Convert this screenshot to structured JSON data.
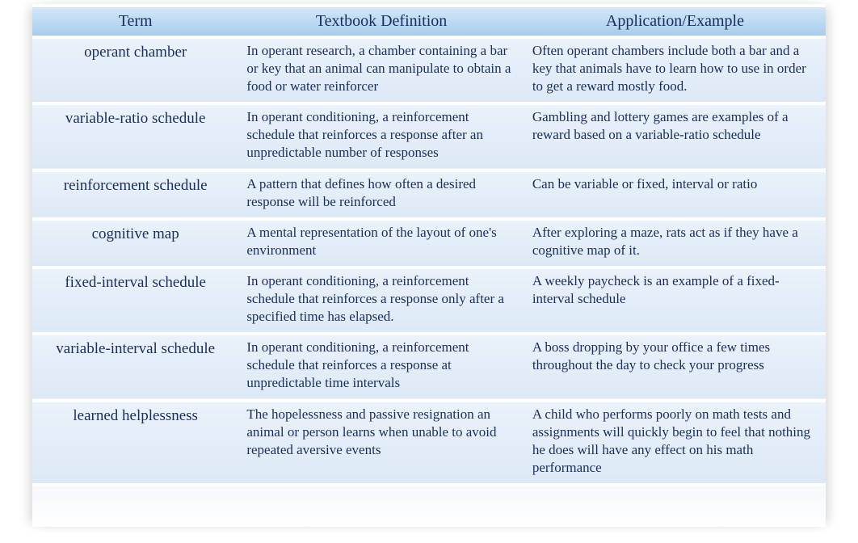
{
  "headers": {
    "term": "Term",
    "definition": "Textbook Definition",
    "application": "Application/Example"
  },
  "rows": [
    {
      "term": "operant chamber",
      "definition": "In operant research, a chamber containing a bar or key that an animal can manipulate to obtain a food or water reinforcer",
      "application": "Often operant chambers include both a bar and a key that animals have to learn how to use in order to get a reward mostly food."
    },
    {
      "term": "variable-ratio schedule",
      "definition": "In operant conditioning, a reinforcement schedule that reinforces a response after an unpredictable number of responses",
      "application": "Gambling and lottery games are examples of a reward based on a variable-ratio schedule"
    },
    {
      "term": "reinforcement schedule",
      "definition": "A pattern that defines how often a desired response will be reinforced",
      "application": "Can be variable or fixed, interval or ratio"
    },
    {
      "term": "cognitive map",
      "definition": "A mental representation of the layout of one's environment",
      "application": "After exploring a maze, rats act as if they have a cognitive map of it."
    },
    {
      "term": "fixed-interval schedule",
      "definition": "In operant conditioning, a reinforcement schedule that reinforces a response only after a specified time has elapsed.",
      "application": "A weekly paycheck is an example of a fixed-interval schedule"
    },
    {
      "term": "variable-interval schedule",
      "definition": "In operant conditioning, a reinforcement schedule that reinforces a response at unpredictable time intervals",
      "application": "A boss dropping by your office a few times throughout the day to check your progress"
    },
    {
      "term": "learned helplessness",
      "definition": "The hopelessness and passive resignation an animal or person learns when unable to avoid repeated aversive events",
      "application": "A child who performs poorly on math tests and assignments will quickly begin to feel that nothing he does will have any effect on his math performance"
    }
  ],
  "styles": {
    "header_bg_top": "#d4e6f7",
    "header_bg_bottom": "#a8cdec",
    "row_bg_top": "#eaf2fb",
    "row_bg_bottom": "#dce9f5",
    "text_color": "#1a2d5e",
    "header_fontsize": 20,
    "term_fontsize": 19,
    "body_fontsize": 17,
    "font_family": "Georgia, serif"
  }
}
